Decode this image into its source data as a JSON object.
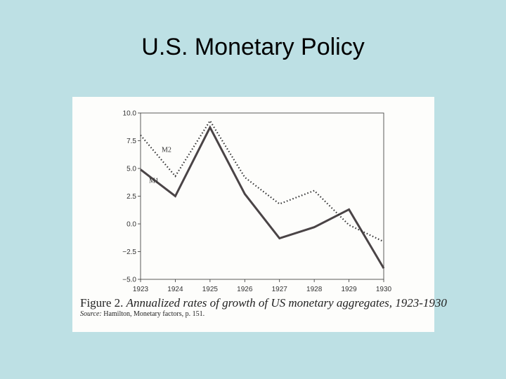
{
  "slide": {
    "title": "U.S. Monetary Policy"
  },
  "colors": {
    "background": "#bde0e4",
    "panel": "#fdfdfb",
    "m1": "#4a4446",
    "m2": "#333333"
  },
  "caption": {
    "figure_label": "Figure 2.",
    "text": "Annualized rates of growth of US monetary aggregates, 1923-1930",
    "source_label": "Source:",
    "source_text": "Hamilton, Monetary factors, p. 151."
  },
  "chart_data": {
    "type": "line",
    "x": [
      "1923",
      "1924",
      "1925",
      "1926",
      "1927",
      "1928",
      "1929",
      "1930"
    ],
    "series": [
      {
        "name": "M1",
        "style": "solid",
        "values": [
          4.9,
          2.5,
          8.7,
          2.7,
          -1.3,
          -0.3,
          1.3,
          -4.0
        ]
      },
      {
        "name": "M2",
        "style": "dotted",
        "values": [
          8.0,
          4.3,
          9.3,
          4.2,
          1.8,
          3.0,
          -0.1,
          -1.6
        ]
      }
    ],
    "yticks": [
      "10.0",
      "7.5",
      "5.0",
      "2.5",
      "0.0",
      "−2.5",
      "−5.0"
    ],
    "ylim": [
      -5.0,
      10.0
    ],
    "grid": false
  }
}
